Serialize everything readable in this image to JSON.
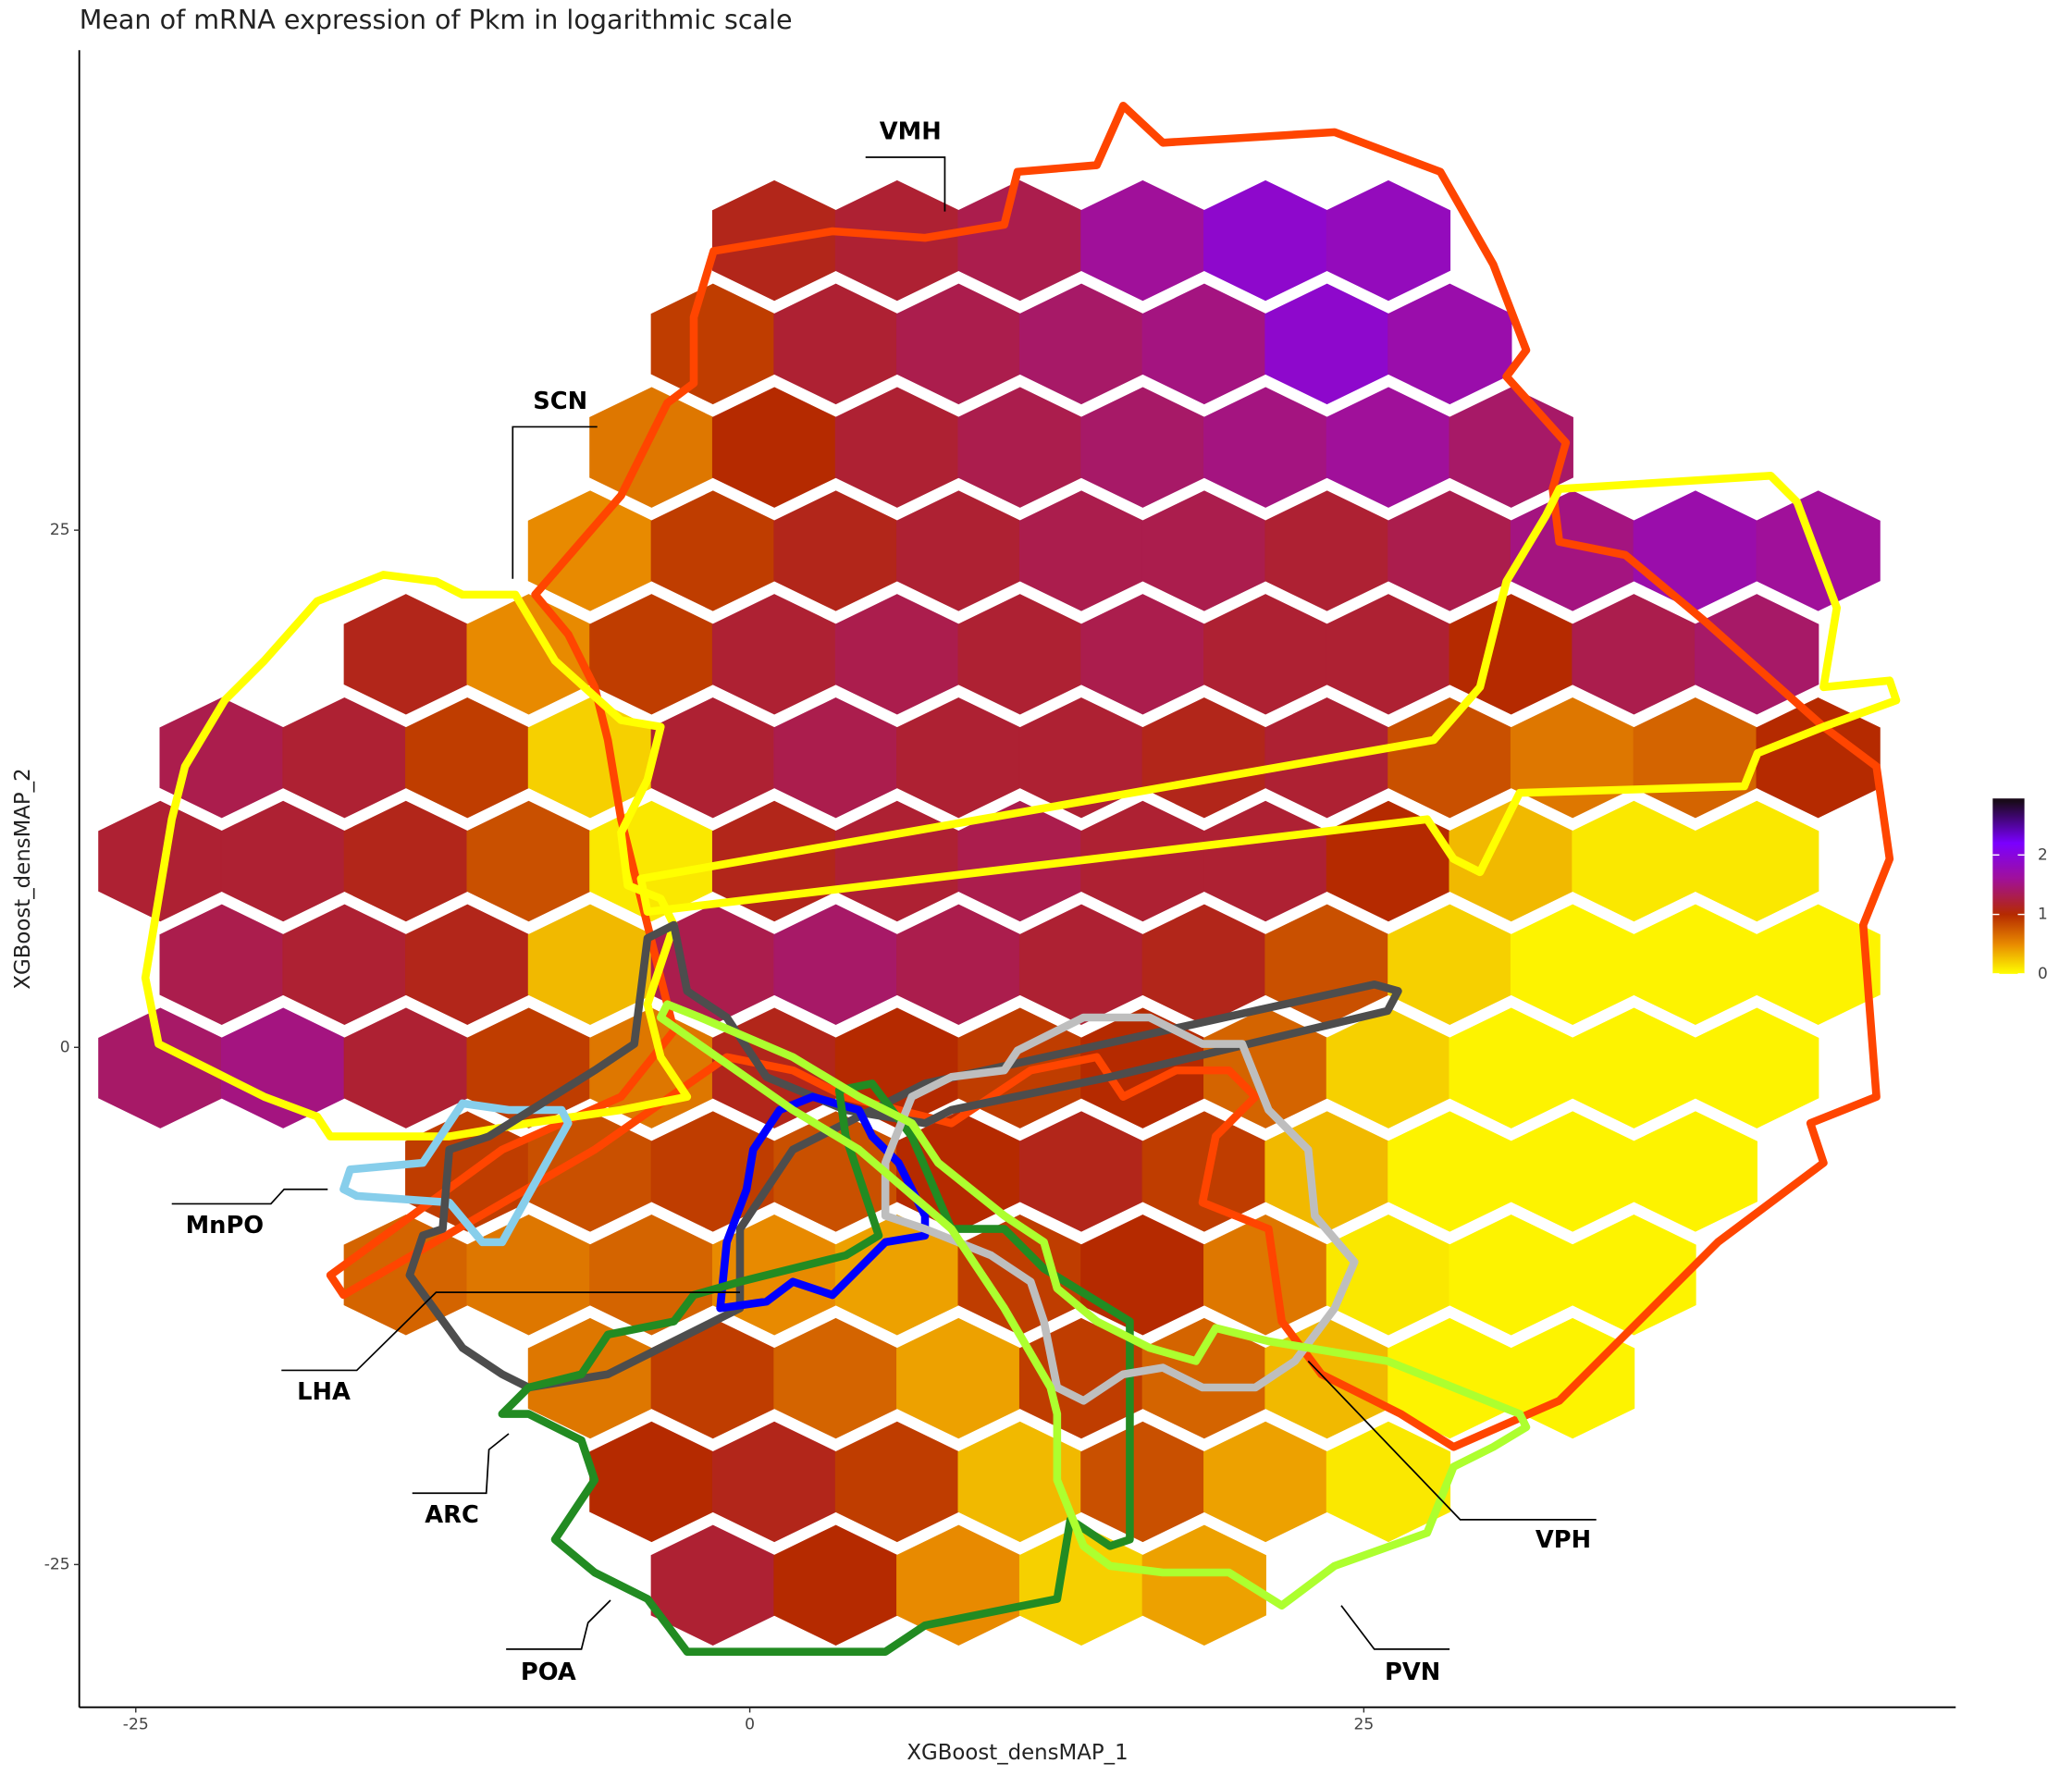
{
  "chart_data": {
    "type": "hexbin",
    "title": "Mean of mRNA expression of Pkm in logarithmic scale",
    "x_label": "XGBoost_densMAP_1",
    "y_label": "XGBoost_densMAP_2",
    "xlim": [
      -27.3,
      49.1
    ],
    "ylim": [
      -31.9,
      48.2
    ],
    "xticks": [
      -25,
      0,
      25
    ],
    "yticks": [
      -25,
      0,
      25
    ],
    "x": [
      1,
      6,
      11,
      16,
      21,
      26,
      -1.5,
      3.5,
      8.5,
      13.5,
      18.5,
      23.5,
      28.5,
      -4,
      1,
      6,
      11,
      16,
      21,
      26,
      31,
      -6.5,
      -1.5,
      3.5,
      8.5,
      13.5,
      18.5,
      23.5,
      28.5,
      33.5,
      38.5,
      43.5,
      -14,
      -9,
      -4,
      1,
      6,
      11,
      16,
      21,
      26,
      31,
      36,
      41,
      -21.5,
      -16.5,
      -11.5,
      -6.5,
      -1.5,
      3.5,
      8.5,
      13.5,
      18.5,
      23.5,
      28.5,
      33.5,
      38.5,
      43.5,
      -24,
      -19,
      -14,
      -9,
      -4,
      1,
      6,
      11,
      16,
      21,
      26,
      31,
      36,
      41,
      -21.5,
      -16.5,
      -11.5,
      -6.5,
      -1.5,
      3.5,
      8.5,
      13.5,
      18.5,
      23.5,
      28.5,
      33.5,
      38.5,
      43.5,
      -24,
      -19,
      -14,
      -9,
      -4,
      1,
      6,
      11,
      16,
      21,
      26,
      31,
      36,
      41,
      -11.5,
      -6.5,
      -1.5,
      3.5,
      8.5,
      13.5,
      18.5,
      23.5,
      28.5,
      33.5,
      38.5,
      -14,
      -9,
      -4,
      1,
      6,
      11,
      16,
      21,
      26,
      31,
      36,
      -6.5,
      -1.5,
      3.5,
      8.5,
      13.5,
      18.5,
      23.5,
      28.5,
      33.5,
      -4,
      1,
      6,
      11,
      16,
      21,
      26,
      -1.5,
      3.5,
      8.5,
      13.5,
      18.5
    ],
    "y": [
      39,
      39,
      39,
      39,
      39,
      39,
      34,
      34,
      34,
      34,
      34,
      34,
      34,
      29,
      29,
      29,
      29,
      29,
      29,
      29,
      29,
      24,
      24,
      24,
      24,
      24,
      24,
      24,
      24,
      24,
      24,
      24,
      19,
      19,
      19,
      19,
      19,
      19,
      19,
      19,
      19,
      19,
      19,
      19,
      14,
      14,
      14,
      14,
      14,
      14,
      14,
      14,
      14,
      14,
      14,
      14,
      14,
      14,
      9,
      9,
      9,
      9,
      9,
      9,
      9,
      9,
      9,
      9,
      9,
      9,
      9,
      9,
      4,
      4,
      4,
      4,
      4,
      4,
      4,
      4,
      4,
      4,
      4,
      4,
      4,
      4,
      -1,
      -1,
      -1,
      -1,
      -1,
      -1,
      -1,
      -1,
      -1,
      -1,
      -1,
      -1,
      -1,
      -1,
      -6,
      -6,
      -6,
      -6,
      -6,
      -6,
      -6,
      -6,
      -6,
      -6,
      -6,
      -11,
      -11,
      -11,
      -11,
      -11,
      -11,
      -11,
      -11,
      -11,
      -11,
      -11,
      -16,
      -16,
      -16,
      -16,
      -16,
      -16,
      -16,
      -16,
      -16,
      -21,
      -21,
      -21,
      -21,
      -21,
      -21,
      -21,
      -26,
      -26,
      -26,
      -26,
      -26
    ],
    "values": [
      1.1,
      1.2,
      1.3,
      1.6,
      1.9,
      1.8,
      0.9,
      1.2,
      1.3,
      1.4,
      1.5,
      1.9,
      1.7,
      0.6,
      1.0,
      1.2,
      1.3,
      1.4,
      1.5,
      1.6,
      1.4,
      0.5,
      0.9,
      1.1,
      1.2,
      1.3,
      1.3,
      1.2,
      1.3,
      1.5,
      1.7,
      1.6,
      1.1,
      0.5,
      0.9,
      1.2,
      1.3,
      1.2,
      1.3,
      1.2,
      1.2,
      1.0,
      1.3,
      1.4,
      1.3,
      1.2,
      0.9,
      0.2,
      1.2,
      1.3,
      1.2,
      1.2,
      1.1,
      1.2,
      0.8,
      0.6,
      0.7,
      1.0,
      1.2,
      1.2,
      1.1,
      0.8,
      0.1,
      1.1,
      1.2,
      1.3,
      1.2,
      1.2,
      1.0,
      0.3,
      0.1,
      0.1,
      1.3,
      1.2,
      1.1,
      0.3,
      1.3,
      1.4,
      1.3,
      1.2,
      1.1,
      0.8,
      0.2,
      0.05,
      0.05,
      0.05,
      1.4,
      1.5,
      1.2,
      0.9,
      0.6,
      1.1,
      1.0,
      0.9,
      1.0,
      0.7,
      0.2,
      0.05,
      0.05,
      0.05,
      0.9,
      0.8,
      0.9,
      0.8,
      1.0,
      1.1,
      0.9,
      0.3,
      0.05,
      0.05,
      0.05,
      0.7,
      0.6,
      0.7,
      0.5,
      0.4,
      0.9,
      1.0,
      0.6,
      0.1,
      0.05,
      0.05,
      0.6,
      0.9,
      0.7,
      0.4,
      0.9,
      0.7,
      0.3,
      0.05,
      0.05,
      1.0,
      1.1,
      0.9,
      0.3,
      0.8,
      0.4,
      0.1,
      1.2,
      1.0,
      0.5,
      0.2,
      0.4
    ],
    "colorscale": [
      [
        0,
        "#ffff00"
      ],
      [
        0.5,
        "#e88a00"
      ],
      [
        1,
        "#b52a00"
      ],
      [
        1.6,
        "#a0109a"
      ],
      [
        2.2,
        "#7b00ff"
      ],
      [
        2.9,
        "#1a0a1a"
      ]
    ],
    "colorbar_lim": [
      0,
      2.95
    ],
    "colorbar_ticks": [
      0,
      1,
      2
    ],
    "regions": [
      {
        "name": "VMH",
        "color": "#ff4500"
      },
      {
        "name": "SCN",
        "color": "#ffff00"
      },
      {
        "name": "MnPO",
        "color": "#87ceeb"
      },
      {
        "name": "LHA",
        "color": "#4d4d4d"
      },
      {
        "name": "ARC",
        "color": "#0000ff"
      },
      {
        "name": "POA",
        "color": "#228b22"
      },
      {
        "name": "VPH",
        "color": "#bebebe"
      },
      {
        "name": "PVN",
        "color": "#adff2f"
      }
    ]
  }
}
